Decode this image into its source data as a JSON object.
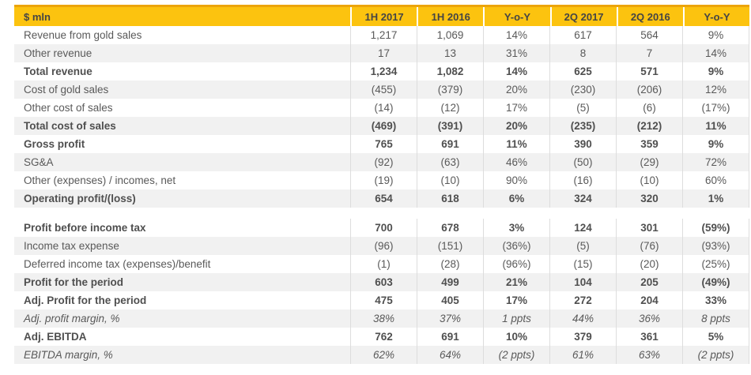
{
  "colors": {
    "gold": "#FCC30F",
    "gold_dark_top_line": "#ECA40B",
    "stripe_row": "#F1F1F1",
    "separator": "#DDDDDD",
    "body_text": "#595959",
    "header_text": "#454545"
  },
  "table": {
    "unit_header": "$ mln",
    "columns": [
      "1H 2017",
      "1H 2016",
      "Y-o-Y",
      "2Q 2017",
      "2Q 2016",
      "Y-o-Y"
    ],
    "rows": [
      {
        "label": "Revenue from gold sales",
        "style": "normal",
        "values": [
          "1,217",
          "1,069",
          "14%",
          "617",
          "564",
          "9%"
        ]
      },
      {
        "label": "Other revenue",
        "style": "normal",
        "values": [
          "17",
          "13",
          "31%",
          "8",
          "7",
          "14%"
        ]
      },
      {
        "label": "Total revenue",
        "style": "bold",
        "values": [
          "1,234",
          "1,082",
          "14%",
          "625",
          "571",
          "9%"
        ]
      },
      {
        "label": "Cost of gold sales",
        "style": "normal",
        "values": [
          "(455)",
          "(379)",
          "20%",
          "(230)",
          "(206)",
          "12%"
        ]
      },
      {
        "label": "Other cost of sales",
        "style": "normal",
        "values": [
          "(14)",
          "(12)",
          "17%",
          "(5)",
          "(6)",
          "(17%)"
        ]
      },
      {
        "label": "Total cost of sales",
        "style": "bold",
        "values": [
          "(469)",
          "(391)",
          "20%",
          "(235)",
          "(212)",
          "11%"
        ]
      },
      {
        "label": "Gross profit",
        "style": "bold",
        "values": [
          "765",
          "691",
          "11%",
          "390",
          "359",
          "9%"
        ]
      },
      {
        "label": "SG&A",
        "style": "normal",
        "values": [
          "(92)",
          "(63)",
          "46%",
          "(50)",
          "(29)",
          "72%"
        ]
      },
      {
        "label": "Other (expenses) / incomes, net",
        "style": "normal",
        "values": [
          "(19)",
          "(10)",
          "90%",
          "(16)",
          "(10)",
          "60%"
        ]
      },
      {
        "label": "Operating profit/(loss)",
        "style": "bold",
        "values": [
          "654",
          "618",
          "6%",
          "324",
          "320",
          "1%"
        ]
      },
      {
        "label": "",
        "style": "spacer",
        "values": []
      },
      {
        "label": "Profit before income tax",
        "style": "bold",
        "values": [
          "700",
          "678",
          "3%",
          "124",
          "301",
          "(59%)"
        ]
      },
      {
        "label": "Income tax expense",
        "style": "normal",
        "values": [
          "(96)",
          "(151)",
          "(36%)",
          "(5)",
          "(76)",
          "(93%)"
        ]
      },
      {
        "label": "Deferred income tax (expenses)/benefit",
        "style": "normal",
        "values": [
          "(1)",
          "(28)",
          "(96%)",
          "(15)",
          "(20)",
          "(25%)"
        ]
      },
      {
        "label": "Profit for the period",
        "style": "bold",
        "values": [
          "603",
          "499",
          "21%",
          "104",
          "205",
          "(49%)"
        ]
      },
      {
        "label": "Adj. Profit for the period",
        "style": "bold",
        "values": [
          "475",
          "405",
          "17%",
          "272",
          "204",
          "33%"
        ]
      },
      {
        "label": "Adj. profit margin, %",
        "style": "italic",
        "values": [
          "38%",
          "37%",
          "1 ppts",
          "44%",
          "36%",
          "8 ppts"
        ]
      },
      {
        "label": "Adj. EBITDA",
        "style": "bold",
        "values": [
          "762",
          "691",
          "10%",
          "379",
          "361",
          "5%"
        ]
      },
      {
        "label": "EBITDA margin, %",
        "style": "italic",
        "values": [
          "62%",
          "64%",
          "(2 ppts)",
          "61%",
          "63%",
          "(2 ppts)"
        ]
      }
    ]
  }
}
